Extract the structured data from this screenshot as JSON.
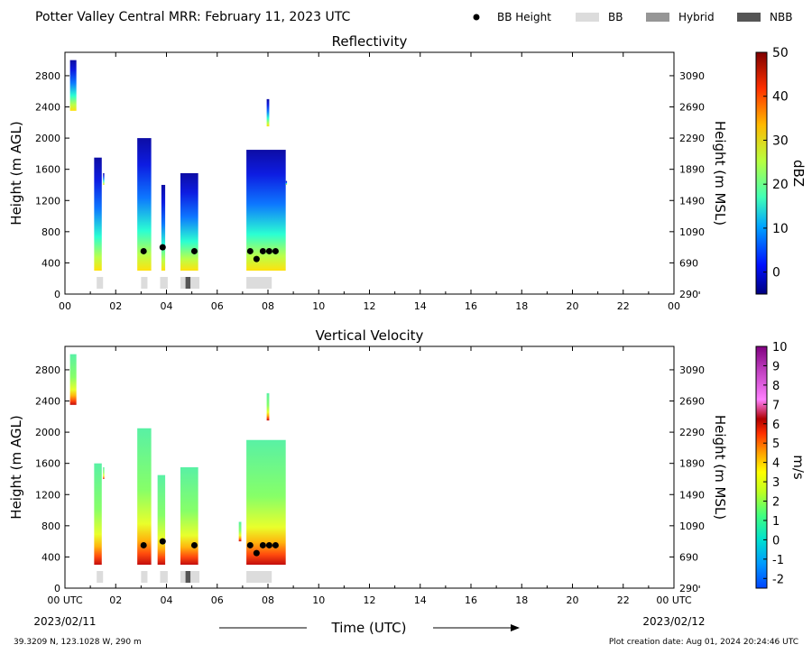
{
  "figure": {
    "title": "Potter Valley Central MRR:  February 11, 2023 UTC",
    "legend": [
      {
        "label": "BB Height",
        "kind": "dot",
        "color": "#000000"
      },
      {
        "label": "BB",
        "kind": "box",
        "color": "#dcdcdc"
      },
      {
        "label": "Hybrid",
        "kind": "box",
        "color": "#969696"
      },
      {
        "label": "NBB",
        "kind": "box",
        "color": "#555555"
      }
    ],
    "xlabel": "Time (UTC)",
    "x_tick_labels": [
      "00",
      "02",
      "04",
      "06",
      "08",
      "10",
      "12",
      "14",
      "16",
      "18",
      "20",
      "22",
      "00"
    ],
    "x_tick_labels_bottom": [
      "00 UTC",
      "02",
      "04",
      "06",
      "08",
      "10",
      "12",
      "14",
      "16",
      "18",
      "20",
      "22",
      "00 UTC"
    ],
    "start_date": "2023/02/11",
    "end_date": "2023/02/12",
    "location": "39.3209 N, 123.1028 W, 290 m",
    "creation": "Plot creation date: Aug 01, 2024 20:24:46 UTC"
  },
  "chart_data": [
    {
      "type": "heatmap",
      "title": "Reflectivity",
      "ylabel": "Height (m AGL)",
      "y2label": "Height (m MSL)",
      "xlim": [
        0,
        24
      ],
      "ylim": [
        0,
        3100
      ],
      "yticks": [
        0,
        400,
        800,
        1200,
        1600,
        2000,
        2400,
        2800
      ],
      "y2ticks": [
        290,
        690,
        1090,
        1490,
        1890,
        2290,
        2690,
        3090
      ],
      "colorbar": {
        "label": "dBZ",
        "range": [
          -5,
          50
        ],
        "ticks": [
          0,
          10,
          20,
          30,
          40,
          50
        ]
      },
      "bb_height_points": [
        {
          "x": 3.1,
          "y": 550
        },
        {
          "x": 3.85,
          "y": 600
        },
        {
          "x": 5.1,
          "y": 550
        },
        {
          "x": 7.3,
          "y": 550
        },
        {
          "x": 7.55,
          "y": 450
        },
        {
          "x": 7.8,
          "y": 550
        },
        {
          "x": 8.05,
          "y": 550
        },
        {
          "x": 8.3,
          "y": 550
        }
      ],
      "bb_type_bars": [
        {
          "start": 1.25,
          "end": 1.5,
          "type": "BB"
        },
        {
          "start": 3.0,
          "end": 3.25,
          "type": "BB"
        },
        {
          "start": 3.75,
          "end": 4.05,
          "type": "BB"
        },
        {
          "start": 4.55,
          "end": 4.75,
          "type": "BB"
        },
        {
          "start": 4.75,
          "end": 4.95,
          "type": "NBB"
        },
        {
          "start": 4.95,
          "end": 5.3,
          "type": "BB"
        },
        {
          "start": 7.15,
          "end": 8.15,
          "type": "BB"
        }
      ],
      "echo_columns": [
        {
          "x0": 0.2,
          "x1": 0.45,
          "bottom": 2350,
          "top": 3000
        },
        {
          "x0": 1.15,
          "x1": 1.45,
          "bottom": 300,
          "top": 1750
        },
        {
          "x0": 1.5,
          "x1": 1.55,
          "bottom": 1400,
          "top": 1550
        },
        {
          "x0": 2.85,
          "x1": 3.4,
          "bottom": 300,
          "top": 2000
        },
        {
          "x0": 3.8,
          "x1": 3.95,
          "bottom": 300,
          "top": 1400
        },
        {
          "x0": 4.55,
          "x1": 5.25,
          "bottom": 300,
          "top": 1550
        },
        {
          "x0": 7.15,
          "x1": 8.7,
          "bottom": 300,
          "top": 1850
        },
        {
          "x0": 7.95,
          "x1": 8.05,
          "bottom": 2150,
          "top": 2500
        },
        {
          "x0": 8.7,
          "x1": 8.75,
          "bottom": 1400,
          "top": 1450
        }
      ]
    },
    {
      "type": "heatmap",
      "title": "Vertical Velocity",
      "ylabel": "Height (m AGL)",
      "y2label": "Height (m MSL)",
      "xlim": [
        0,
        24
      ],
      "ylim": [
        0,
        3100
      ],
      "yticks": [
        0,
        400,
        800,
        1200,
        1600,
        2000,
        2400,
        2800
      ],
      "y2ticks": [
        290,
        690,
        1090,
        1490,
        1890,
        2290,
        2690,
        3090
      ],
      "colorbar": {
        "label": "m/s",
        "range": [
          -2.5,
          10
        ],
        "ticks": [
          -2,
          -1,
          0,
          1,
          2,
          3,
          4,
          5,
          6,
          7,
          8,
          9,
          10
        ]
      },
      "bb_height_points": [
        {
          "x": 3.1,
          "y": 550
        },
        {
          "x": 3.85,
          "y": 600
        },
        {
          "x": 5.1,
          "y": 550
        },
        {
          "x": 7.3,
          "y": 550
        },
        {
          "x": 7.55,
          "y": 450
        },
        {
          "x": 7.8,
          "y": 550
        },
        {
          "x": 8.05,
          "y": 550
        },
        {
          "x": 8.3,
          "y": 550
        }
      ],
      "bb_type_bars": [
        {
          "start": 1.25,
          "end": 1.5,
          "type": "BB"
        },
        {
          "start": 3.0,
          "end": 3.25,
          "type": "BB"
        },
        {
          "start": 3.75,
          "end": 4.05,
          "type": "BB"
        },
        {
          "start": 4.55,
          "end": 4.75,
          "type": "BB"
        },
        {
          "start": 4.75,
          "end": 4.95,
          "type": "NBB"
        },
        {
          "start": 4.95,
          "end": 5.3,
          "type": "BB"
        },
        {
          "start": 7.15,
          "end": 8.15,
          "type": "BB"
        }
      ],
      "echo_columns": [
        {
          "x0": 0.2,
          "x1": 0.45,
          "bottom": 2350,
          "top": 3000
        },
        {
          "x0": 1.15,
          "x1": 1.45,
          "bottom": 300,
          "top": 1600
        },
        {
          "x0": 1.5,
          "x1": 1.55,
          "bottom": 1400,
          "top": 1550
        },
        {
          "x0": 2.85,
          "x1": 3.4,
          "bottom": 300,
          "top": 2050
        },
        {
          "x0": 3.65,
          "x1": 3.95,
          "bottom": 300,
          "top": 1450
        },
        {
          "x0": 4.55,
          "x1": 5.25,
          "bottom": 300,
          "top": 1550
        },
        {
          "x0": 6.85,
          "x1": 6.95,
          "bottom": 600,
          "top": 850
        },
        {
          "x0": 7.15,
          "x1": 8.7,
          "bottom": 300,
          "top": 1900
        },
        {
          "x0": 7.95,
          "x1": 8.05,
          "bottom": 2150,
          "top": 2500
        }
      ]
    }
  ]
}
